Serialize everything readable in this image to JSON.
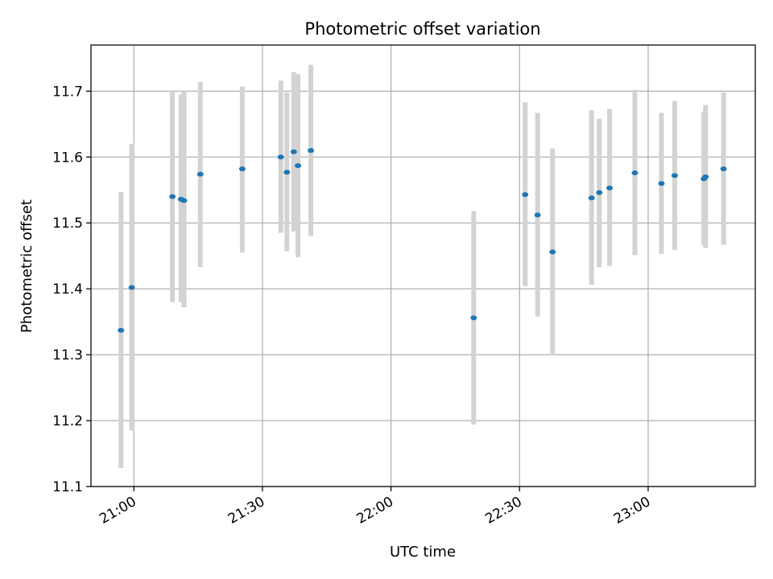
{
  "chart_data": {
    "type": "scatter",
    "title": "Photometric offset variation",
    "xlabel": "UTC time",
    "ylabel": "Photometric offset",
    "x_unit": "UTC time (HH:MM)",
    "xlim": [
      "20:50",
      "23:25"
    ],
    "ylim": [
      11.1,
      11.77
    ],
    "x_ticks": [
      "21:00",
      "21:30",
      "22:00",
      "22:30",
      "23:00"
    ],
    "y_ticks": [
      "11.1",
      "11.2",
      "11.3",
      "11.4",
      "11.5",
      "11.6",
      "11.7"
    ],
    "grid": true,
    "legend": "none",
    "colors": {
      "point": "#1f77b4",
      "errorbar": "#d3d3d3",
      "grid": "#b0b0b0"
    },
    "series": [
      {
        "points": [
          {
            "x": "20:57",
            "y": 11.337,
            "low": 11.128,
            "high": 11.547
          },
          {
            "x": "20:59.5",
            "y": 11.402,
            "low": 11.185,
            "high": 11.62
          },
          {
            "x": "21:09",
            "y": 11.54,
            "low": 11.38,
            "high": 11.7
          },
          {
            "x": "21:11",
            "y": 11.536,
            "low": 11.38,
            "high": 11.695
          },
          {
            "x": "21:11.7",
            "y": 11.534,
            "low": 11.372,
            "high": 11.7
          },
          {
            "x": "21:15.5",
            "y": 11.574,
            "low": 11.433,
            "high": 11.714
          },
          {
            "x": "21:25.3",
            "y": 11.582,
            "low": 11.455,
            "high": 11.707
          },
          {
            "x": "21:34.3",
            "y": 11.6,
            "low": 11.485,
            "high": 11.716
          },
          {
            "x": "21:35.7",
            "y": 11.577,
            "low": 11.457,
            "high": 11.698
          },
          {
            "x": "21:37.3",
            "y": 11.608,
            "low": 11.487,
            "high": 11.729
          },
          {
            "x": "21:38.3",
            "y": 11.587,
            "low": 11.448,
            "high": 11.726
          },
          {
            "x": "21:41.3",
            "y": 11.61,
            "low": 11.48,
            "high": 11.74
          },
          {
            "x": "22:19.3",
            "y": 11.356,
            "low": 11.194,
            "high": 11.518
          },
          {
            "x": "22:31.3",
            "y": 11.543,
            "low": 11.404,
            "high": 11.683
          },
          {
            "x": "22:34.2",
            "y": 11.512,
            "low": 11.358,
            "high": 11.667
          },
          {
            "x": "22:37.7",
            "y": 11.456,
            "low": 11.299,
            "high": 11.613
          },
          {
            "x": "22:46.8",
            "y": 11.538,
            "low": 11.406,
            "high": 11.671
          },
          {
            "x": "22:48.6",
            "y": 11.546,
            "low": 11.433,
            "high": 11.658
          },
          {
            "x": "22:51",
            "y": 11.553,
            "low": 11.435,
            "high": 11.673
          },
          {
            "x": "22:56.9",
            "y": 11.576,
            "low": 11.451,
            "high": 11.702
          },
          {
            "x": "23:03.1",
            "y": 11.56,
            "low": 11.453,
            "high": 11.667
          },
          {
            "x": "23:06.2",
            "y": 11.572,
            "low": 11.459,
            "high": 11.685
          },
          {
            "x": "23:13",
            "y": 11.567,
            "low": 11.466,
            "high": 11.668
          },
          {
            "x": "23:13.4",
            "y": 11.57,
            "low": 11.462,
            "high": 11.679
          },
          {
            "x": "23:17.6",
            "y": 11.582,
            "low": 11.467,
            "high": 11.698
          }
        ]
      }
    ]
  }
}
